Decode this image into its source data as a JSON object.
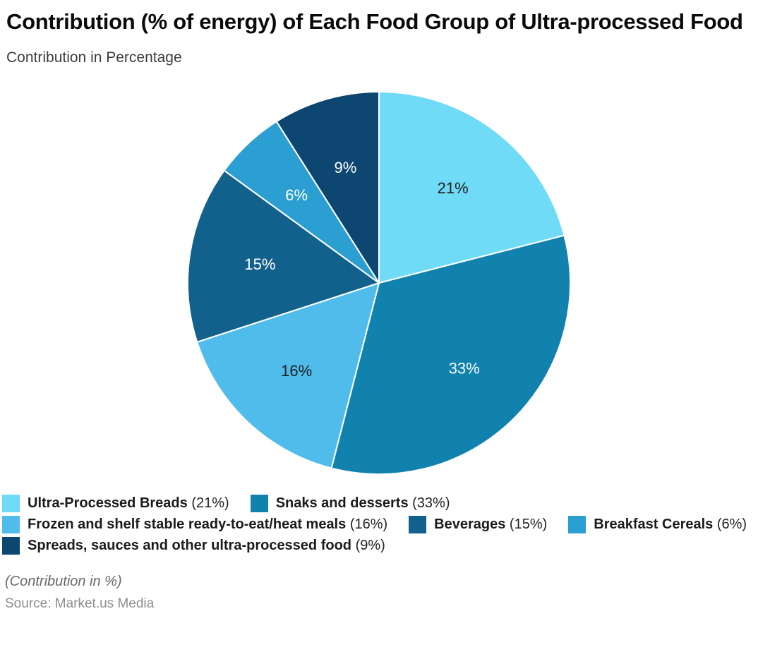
{
  "header": {
    "title": "Contribution (% of energy) of Each Food Group of Ultra-processed Food",
    "subtitle": "Contribution in Percentage"
  },
  "chart_data": {
    "type": "pie",
    "title": "Contribution (% of energy) of Each Food Group of Ultra-processed Food",
    "subtitle": "Contribution in Percentage",
    "start_angle_deg": 0,
    "direction": "clockwise",
    "legend_position": "bottom",
    "slice_label_format": "value%",
    "series": [
      {
        "name": "Ultra-Processed Breads",
        "value": 21,
        "slice_label": "21%",
        "color": "#6FDBF7",
        "label_color": "#1e1e1e"
      },
      {
        "name": "Snaks and desserts",
        "value": 33,
        "slice_label": "33%",
        "color": "#1182AE",
        "label_color": "#ffffff"
      },
      {
        "name": "Frozen and shelf stable ready-to-eat/heat meals",
        "value": 16,
        "slice_label": "16%",
        "color": "#4FBCEB",
        "label_color": "#1e1e1e"
      },
      {
        "name": "Beverages",
        "value": 15,
        "slice_label": "15%",
        "color": "#12618D",
        "label_color": "#ffffff"
      },
      {
        "name": "Breakfast Cereals",
        "value": 6,
        "slice_label": "6%",
        "color": "#2B9FD1",
        "label_color": "#ffffff"
      },
      {
        "name": "Spreads, sauces and other ultra-processed food",
        "value": 9,
        "slice_label": "9%",
        "color": "#0D4771",
        "label_color": "#ffffff"
      }
    ],
    "legend_value_texts": [
      "(21%)",
      "(33%)",
      "(16%)",
      "(15%)",
      "(6%)",
      "(9%)"
    ]
  },
  "footer": {
    "note": "(Contribution in %)",
    "source": "Source: Market.us Media"
  }
}
